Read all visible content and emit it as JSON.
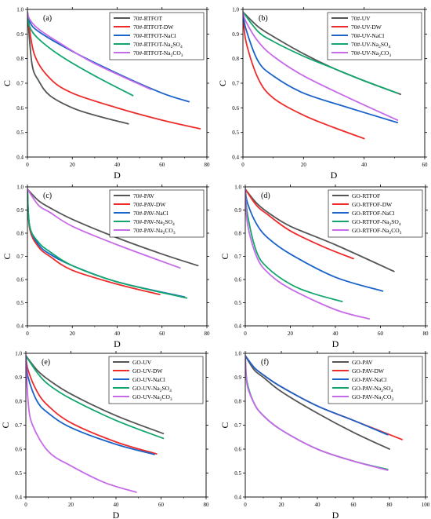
{
  "chart_data": [
    {
      "type": "line",
      "panel_label": "(a)",
      "xlabel": "D",
      "ylabel": "C",
      "xlim": [
        0,
        80
      ],
      "ylim": [
        0.4,
        1.0
      ],
      "xticks": [
        0,
        20,
        40,
        60,
        80
      ],
      "yticks": [
        0.4,
        0.5,
        0.6,
        0.7,
        0.8,
        0.9,
        1.0
      ],
      "xtick_labels": [
        "0",
        "20",
        "40",
        "60",
        "80"
      ],
      "ytick_labels": [
        "0.4",
        "0.5",
        "0.6",
        "0.7",
        "0.8",
        "0.9",
        "1.0"
      ],
      "legend_position": "top-right",
      "series": [
        {
          "name": "70#-RTFOT",
          "color": "#555555",
          "x": [
            0,
            2,
            5,
            10,
            20,
            30,
            45
          ],
          "y": [
            0.99,
            0.78,
            0.71,
            0.65,
            0.6,
            0.57,
            0.535
          ]
        },
        {
          "name": "70#-RTFOT-DW",
          "color": "#ee2b2b",
          "x": [
            0,
            3,
            10,
            20,
            40,
            60,
            77
          ],
          "y": [
            0.99,
            0.82,
            0.72,
            0.66,
            0.6,
            0.55,
            0.515
          ]
        },
        {
          "name": "70#-RTFOT-NaCl",
          "color": "#1a63c9",
          "x": [
            0,
            1,
            5,
            20,
            40,
            60,
            72
          ],
          "y": [
            0.99,
            0.95,
            0.91,
            0.83,
            0.74,
            0.66,
            0.625
          ]
        },
        {
          "name": "70#-RTFOT-Na2SO4",
          "name_rich": [
            "70#-RTFOT-Na",
            "2",
            "SO",
            "4"
          ],
          "color": "#12a66c",
          "x": [
            0,
            1,
            5,
            15,
            30,
            47
          ],
          "y": [
            0.99,
            0.93,
            0.88,
            0.81,
            0.73,
            0.65
          ]
        },
        {
          "name": "70#-RTFOT-Na2CO3",
          "name_rich": [
            "70#-RTFOT-Na",
            "2",
            "CO",
            "3"
          ],
          "color": "#c76ae8",
          "x": [
            0,
            1,
            5,
            15,
            30,
            55
          ],
          "y": [
            0.99,
            0.96,
            0.92,
            0.86,
            0.78,
            0.675
          ]
        }
      ]
    },
    {
      "type": "line",
      "panel_label": "(b)",
      "xlabel": "D",
      "ylabel": "C",
      "xlim": [
        0,
        60
      ],
      "ylim": [
        0.4,
        1.0
      ],
      "xticks": [
        0,
        20,
        40,
        60
      ],
      "yticks": [
        0.4,
        0.5,
        0.6,
        0.7,
        0.8,
        0.9,
        1.0
      ],
      "xtick_labels": [
        "0",
        "20",
        "40",
        "60"
      ],
      "ytick_labels": [
        "0.4",
        "0.5",
        "0.6",
        "0.7",
        "0.8",
        "0.9",
        "1.0"
      ],
      "legend_position": "top-right",
      "series": [
        {
          "name": "70#-UV",
          "color": "#555555",
          "x": [
            0,
            5,
            10,
            20,
            30,
            40,
            52
          ],
          "y": [
            0.99,
            0.93,
            0.89,
            0.82,
            0.76,
            0.71,
            0.655
          ]
        },
        {
          "name": "70#-UV-DW",
          "color": "#ee2b2b",
          "x": [
            0,
            1,
            5,
            10,
            20,
            30,
            40
          ],
          "y": [
            0.99,
            0.87,
            0.72,
            0.64,
            0.57,
            0.52,
            0.475
          ]
        },
        {
          "name": "70#-UV-NaCl",
          "color": "#1a63c9",
          "x": [
            0,
            1,
            5,
            10,
            20,
            35,
            51
          ],
          "y": [
            0.99,
            0.92,
            0.79,
            0.73,
            0.66,
            0.6,
            0.54
          ]
        },
        {
          "name": "70#-UV-Na2SO4",
          "name_rich": [
            "70#-UV-Na",
            "2",
            "SO",
            "4"
          ],
          "color": "#12a66c",
          "x": [
            0,
            5,
            10,
            20,
            30,
            40,
            51
          ],
          "y": [
            0.99,
            0.91,
            0.87,
            0.81,
            0.76,
            0.71,
            0.66
          ]
        },
        {
          "name": "70#-UV-Na2CO3",
          "name_rich": [
            "70#-UV-Na",
            "2",
            "CO",
            "3"
          ],
          "color": "#c76ae8",
          "x": [
            0,
            1,
            5,
            10,
            20,
            35,
            51
          ],
          "y": [
            0.99,
            0.95,
            0.87,
            0.81,
            0.73,
            0.64,
            0.55
          ]
        }
      ]
    },
    {
      "type": "line",
      "panel_label": "(c)",
      "xlabel": "D",
      "ylabel": "C",
      "xlim": [
        0,
        80
      ],
      "ylim": [
        0.4,
        1.0
      ],
      "xticks": [
        0,
        20,
        40,
        60,
        80
      ],
      "yticks": [
        0.4,
        0.5,
        0.6,
        0.7,
        0.8,
        0.9,
        1.0
      ],
      "xtick_labels": [
        "0",
        "20",
        "40",
        "60",
        "80"
      ],
      "ytick_labels": [
        "0.4",
        "0.5",
        "0.6",
        "0.7",
        "0.8",
        "0.9",
        "1.0"
      ],
      "legend_position": "top-right",
      "series": [
        {
          "name": "70#-PAV",
          "color": "#555555",
          "x": [
            0,
            5,
            10,
            20,
            40,
            60,
            76
          ],
          "y": [
            0.99,
            0.94,
            0.91,
            0.86,
            0.78,
            0.71,
            0.66
          ]
        },
        {
          "name": "70#-PAV-DW",
          "color": "#ee2b2b",
          "x": [
            0,
            1,
            5,
            10,
            20,
            40,
            59
          ],
          "y": [
            0.99,
            0.82,
            0.74,
            0.7,
            0.64,
            0.58,
            0.535
          ]
        },
        {
          "name": "70#-PAV-NaCl",
          "color": "#1a63c9",
          "x": [
            0,
            1,
            5,
            10,
            20,
            40,
            70
          ],
          "y": [
            0.99,
            0.83,
            0.75,
            0.71,
            0.66,
            0.59,
            0.525
          ]
        },
        {
          "name": "70#-PAV-Na2SO4",
          "name_rich": [
            "70#-PAV-Na",
            "2",
            "SO",
            "4"
          ],
          "color": "#12a66c",
          "x": [
            0,
            1,
            5,
            10,
            20,
            40,
            71
          ],
          "y": [
            0.99,
            0.83,
            0.76,
            0.72,
            0.66,
            0.59,
            0.52
          ]
        },
        {
          "name": "70#-PAV-Na2CO3",
          "name_rich": [
            "70#-PAV-Na",
            "2",
            "CO",
            "3"
          ],
          "color": "#c76ae8",
          "x": [
            0,
            5,
            10,
            20,
            40,
            68
          ],
          "y": [
            0.99,
            0.92,
            0.89,
            0.83,
            0.75,
            0.65
          ]
        }
      ]
    },
    {
      "type": "line",
      "panel_label": "(d)",
      "xlabel": "D",
      "ylabel": "C",
      "xlim": [
        0,
        80
      ],
      "ylim": [
        0.4,
        1.0
      ],
      "xticks": [
        0,
        20,
        40,
        60,
        80
      ],
      "yticks": [
        0.4,
        0.5,
        0.6,
        0.7,
        0.8,
        0.9,
        1.0
      ],
      "xtick_labels": [
        "0",
        "20",
        "40",
        "60",
        "80"
      ],
      "ytick_labels": [
        "0.4",
        "0.5",
        "0.6",
        "0.7",
        "0.8",
        "0.9",
        "1.0"
      ],
      "legend_position": "top-right",
      "series": [
        {
          "name": "GO-RTFOF",
          "color": "#555555",
          "x": [
            0,
            5,
            10,
            20,
            40,
            66
          ],
          "y": [
            0.99,
            0.93,
            0.89,
            0.83,
            0.75,
            0.635
          ]
        },
        {
          "name": "GO-RTFOF-DW",
          "color": "#ee2b2b",
          "x": [
            0,
            5,
            10,
            20,
            35,
            48
          ],
          "y": [
            0.99,
            0.92,
            0.88,
            0.81,
            0.74,
            0.69
          ]
        },
        {
          "name": "GO-RTFOF-NaCl",
          "color": "#1a63c9",
          "x": [
            0,
            1,
            5,
            10,
            20,
            40,
            61
          ],
          "y": [
            0.99,
            0.93,
            0.84,
            0.78,
            0.71,
            0.61,
            0.55
          ]
        },
        {
          "name": "GO-RTFOF-Na2SO4",
          "name_rich": [
            "GO-RTFOF-Na",
            "2",
            "SO",
            "4"
          ],
          "color": "#12a66c",
          "x": [
            0,
            1,
            5,
            10,
            20,
            30,
            43
          ],
          "y": [
            0.99,
            0.88,
            0.72,
            0.65,
            0.58,
            0.54,
            0.505
          ]
        },
        {
          "name": "GO-RTFOF-Na2CO3",
          "name_rich": [
            "GO-RTFOF-Na",
            "2",
            "CO",
            "3"
          ],
          "color": "#c76ae8",
          "x": [
            0,
            1,
            5,
            10,
            20,
            40,
            55
          ],
          "y": [
            0.99,
            0.84,
            0.7,
            0.63,
            0.56,
            0.47,
            0.43
          ]
        }
      ]
    },
    {
      "type": "line",
      "panel_label": "(e)",
      "xlabel": "D",
      "ylabel": "C",
      "xlim": [
        0,
        80
      ],
      "ylim": [
        0.4,
        1.0
      ],
      "xticks": [
        0,
        20,
        40,
        60,
        80
      ],
      "yticks": [
        0.4,
        0.5,
        0.6,
        0.7,
        0.8,
        0.9,
        1.0
      ],
      "xtick_labels": [
        "0",
        "20",
        "40",
        "60",
        "80"
      ],
      "ytick_labels": [
        "0.4",
        "0.5",
        "0.6",
        "0.7",
        "0.8",
        "0.9",
        "1.0"
      ],
      "legend_position": "top-right",
      "series": [
        {
          "name": "GO-UV",
          "color": "#555555",
          "x": [
            0,
            5,
            10,
            20,
            40,
            61
          ],
          "y": [
            0.99,
            0.93,
            0.89,
            0.83,
            0.74,
            0.665
          ]
        },
        {
          "name": "GO-UV-DW",
          "color": "#ee2b2b",
          "x": [
            0,
            1,
            5,
            10,
            20,
            40,
            58
          ],
          "y": [
            0.99,
            0.93,
            0.84,
            0.78,
            0.71,
            0.63,
            0.58
          ]
        },
        {
          "name": "GO-UV-NaCl",
          "color": "#1a63c9",
          "x": [
            0,
            1,
            5,
            10,
            20,
            40,
            57
          ],
          "y": [
            0.99,
            0.9,
            0.8,
            0.75,
            0.69,
            0.62,
            0.578
          ]
        },
        {
          "name": "GO-UV-Na2SO4",
          "name_rich": [
            "GO-UV-Na",
            "2",
            "SO",
            "4"
          ],
          "color": "#12a66c",
          "x": [
            0,
            5,
            10,
            20,
            40,
            61
          ],
          "y": [
            0.99,
            0.92,
            0.87,
            0.81,
            0.72,
            0.645
          ]
        },
        {
          "name": "GO-UV-Na2CO3",
          "name_rich": [
            "GO-UV-Na",
            "2",
            "CO",
            "3"
          ],
          "color": "#c76ae8",
          "x": [
            0,
            1,
            3,
            10,
            20,
            35,
            49
          ],
          "y": [
            0.99,
            0.8,
            0.7,
            0.59,
            0.53,
            0.46,
            0.42
          ]
        }
      ]
    },
    {
      "type": "line",
      "panel_label": "(f)",
      "xlabel": "D",
      "ylabel": "C",
      "xlim": [
        0,
        100
      ],
      "ylim": [
        0.4,
        1.0
      ],
      "xticks": [
        0,
        20,
        40,
        60,
        80,
        100
      ],
      "yticks": [
        0.4,
        0.5,
        0.6,
        0.7,
        0.8,
        0.9,
        1.0
      ],
      "xtick_labels": [
        "0",
        "20",
        "40",
        "60",
        "80",
        "100"
      ],
      "ytick_labels": [
        "0.4",
        "0.5",
        "0.6",
        "0.7",
        "0.8",
        "0.9",
        "1.0"
      ],
      "legend_position": "top-right",
      "series": [
        {
          "name": "GO-PAV",
          "color": "#555555",
          "x": [
            0,
            5,
            10,
            20,
            40,
            60,
            80
          ],
          "y": [
            0.99,
            0.93,
            0.9,
            0.84,
            0.75,
            0.67,
            0.6
          ]
        },
        {
          "name": "GO-PAV-DW",
          "color": "#ee2b2b",
          "x": [
            0,
            5,
            10,
            20,
            40,
            60,
            87
          ],
          "y": [
            0.99,
            0.94,
            0.91,
            0.86,
            0.78,
            0.72,
            0.64
          ]
        },
        {
          "name": "GO-PAV-NaCl",
          "color": "#1a63c9",
          "x": [
            0,
            5,
            10,
            20,
            40,
            60,
            79
          ],
          "y": [
            0.99,
            0.94,
            0.91,
            0.86,
            0.78,
            0.72,
            0.66
          ]
        },
        {
          "name": "GO-PAV-Na2SO4",
          "name_rich": [
            "GO-PAV-Na",
            "2",
            "SO",
            "4"
          ],
          "color": "#12a66c",
          "x": [
            0,
            1,
            5,
            10,
            20,
            40,
            60,
            79
          ],
          "y": [
            0.99,
            0.88,
            0.79,
            0.74,
            0.68,
            0.6,
            0.55,
            0.515
          ]
        },
        {
          "name": "GO-PAV-Na2CO3",
          "name_rich": [
            "GO-PAV-Na",
            "2",
            "CO",
            "3"
          ],
          "color": "#c76ae8",
          "x": [
            0,
            1,
            5,
            10,
            20,
            40,
            60,
            79
          ],
          "y": [
            0.99,
            0.87,
            0.79,
            0.74,
            0.68,
            0.6,
            0.55,
            0.512
          ]
        }
      ]
    }
  ]
}
